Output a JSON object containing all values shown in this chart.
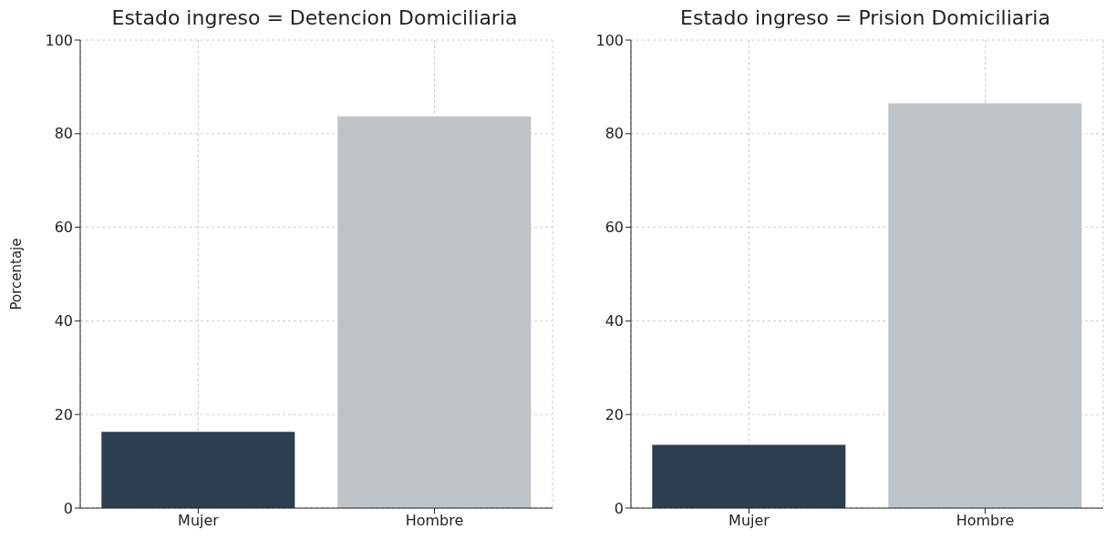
{
  "chart_data": [
    {
      "type": "bar",
      "title": "Estado ingreso = Detencion Domiciliaria",
      "ylabel": "Porcentaje",
      "categories": [
        "Mujer",
        "Hombre"
      ],
      "values": [
        16.3,
        83.7
      ],
      "colors": [
        "#2c3e50",
        "#bdc3c7"
      ],
      "ylim": [
        0,
        100
      ],
      "yticks": [
        0,
        20,
        40,
        60,
        80,
        100
      ],
      "grid": true
    },
    {
      "type": "bar",
      "title": "Estado ingreso = Prision Domiciliaria",
      "categories": [
        "Mujer",
        "Hombre"
      ],
      "values": [
        13.5,
        86.5
      ],
      "colors": [
        "#2c3e50",
        "#bdc3c7"
      ],
      "ylim": [
        0,
        100
      ],
      "yticks": [
        0,
        20,
        40,
        60,
        80,
        100
      ],
      "grid": true
    }
  ]
}
